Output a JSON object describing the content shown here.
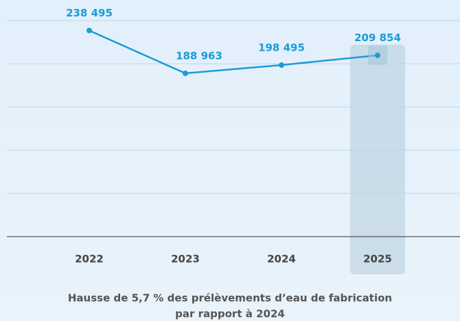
{
  "chart_data": {
    "type": "line",
    "categories": [
      "2022",
      "2023",
      "2024",
      "2025"
    ],
    "series": [
      {
        "color": "#1c9ad6",
        "values": [
          238495,
          188963,
          198495,
          209854
        ],
        "value_labels": [
          "238 495",
          "188 963",
          "198 495",
          "209 854"
        ]
      }
    ],
    "ylim": [
      0,
      250000
    ],
    "yticks": [
      0,
      50000,
      100000,
      150000,
      200000,
      250000
    ],
    "grid": true,
    "highlight": "2025",
    "caption": [
      "Hausse de 5,7 % des prélèvements d’eau de fabrication",
      "par rapport à 2024"
    ]
  }
}
